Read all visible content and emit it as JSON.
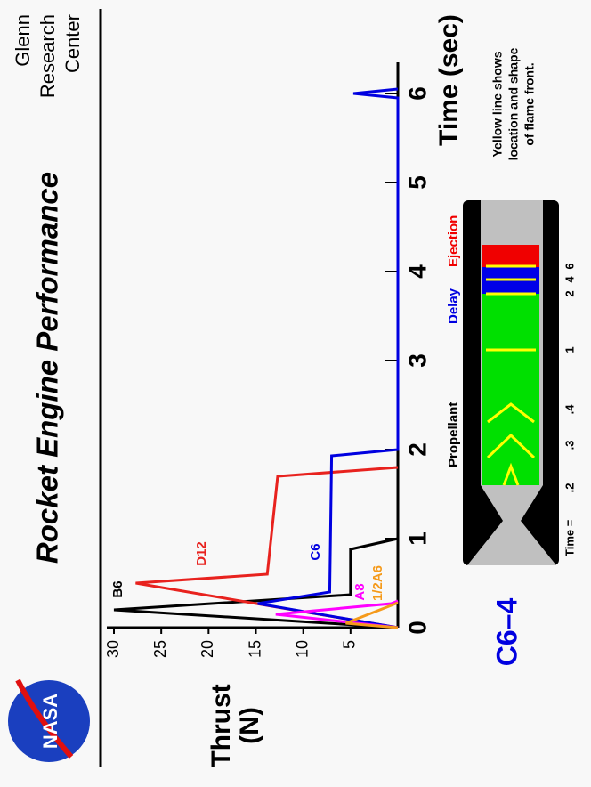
{
  "header": {
    "logo": "NASA",
    "org": [
      "Glenn",
      "Research",
      "Center"
    ]
  },
  "chart_data": {
    "type": "line",
    "title": "Rocket Engine Performance",
    "xlabel": "Time (sec)",
    "ylabel": [
      "Thrust",
      "(N)"
    ],
    "xlim": [
      0,
      6.35
    ],
    "ylim": [
      0,
      30
    ],
    "xticks": [
      0,
      1,
      2,
      3,
      4,
      5,
      6
    ],
    "yticks": [
      5,
      10,
      15,
      20,
      25,
      30
    ],
    "series": [
      {
        "name": "B6",
        "color": "#000000",
        "x": [
          0,
          0.2,
          0.37,
          0.88,
          1.0
        ],
        "values": [
          0,
          30,
          5,
          5,
          0
        ]
      },
      {
        "name": "D12",
        "color": "#e8221e",
        "x": [
          0,
          0.5,
          0.6,
          1.7,
          1.8
        ],
        "values": [
          0,
          27.7,
          13.8,
          12.7,
          0
        ]
      },
      {
        "name": "C6",
        "color": "#0000e0",
        "x": [
          0,
          0.27,
          0.4,
          1.93,
          2.0,
          5.95,
          6.0,
          6.05
        ],
        "values": [
          0,
          14.8,
          7.2,
          7.0,
          0,
          0,
          4.7,
          0
        ]
      },
      {
        "name": "A8",
        "color": "#ff00ff",
        "x": [
          0,
          0.15,
          0.27,
          0.3
        ],
        "values": [
          0,
          12.9,
          0.7,
          0
        ]
      },
      {
        "name": "1/2A6",
        "color": "#f59a1a",
        "x": [
          0,
          0.05,
          0.25,
          0.28
        ],
        "values": [
          0,
          5.5,
          0.7,
          0
        ]
      }
    ]
  },
  "diagram": {
    "title": "C6–4",
    "labels": {
      "propellant": "Propellant",
      "delay": "Delay",
      "ejection": "Ejection"
    },
    "note": [
      "Yellow line shows",
      "location and shape",
      "of flame front."
    ],
    "time_label": "Time =",
    "times": [
      ".2",
      ".3",
      ".4",
      "1",
      "2",
      "4",
      "6"
    ]
  }
}
